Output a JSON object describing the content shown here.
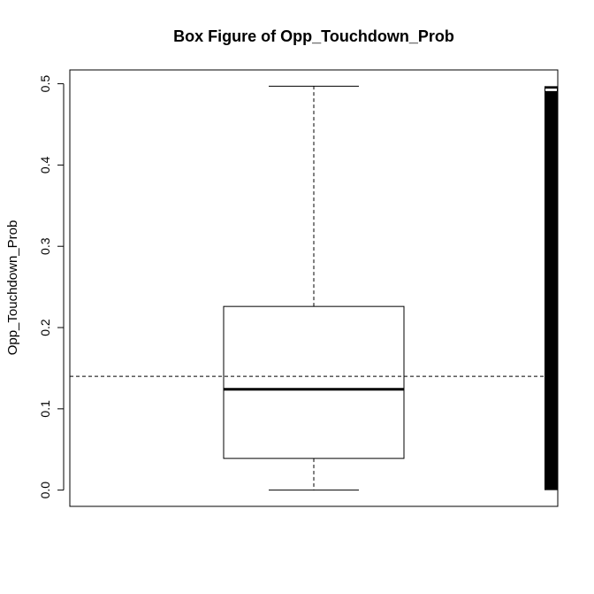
{
  "chart_data": {
    "type": "box",
    "title": "Box Figure of Opp_Touchdown_Prob",
    "xlabel": "",
    "ylabel": "Opp_Touchdown_Prob",
    "ylim": [
      -0.02,
      0.517
    ],
    "yticks": [
      0.0,
      0.1,
      0.2,
      0.3,
      0.4,
      0.5
    ],
    "ytick_labels": [
      "0.0",
      "0.1",
      "0.2",
      "0.3",
      "0.4",
      "0.5"
    ],
    "box": {
      "min": 0.0,
      "q1": 0.039,
      "median": 0.124,
      "q3": 0.226,
      "max": 0.497
    },
    "mean_line": 0.14,
    "rug": {
      "from": 0.0,
      "to": 0.497,
      "white_gap": [
        0.491,
        0.494
      ]
    },
    "grid": false,
    "colors": {
      "line": "#000000",
      "background": "#ffffff"
    }
  }
}
